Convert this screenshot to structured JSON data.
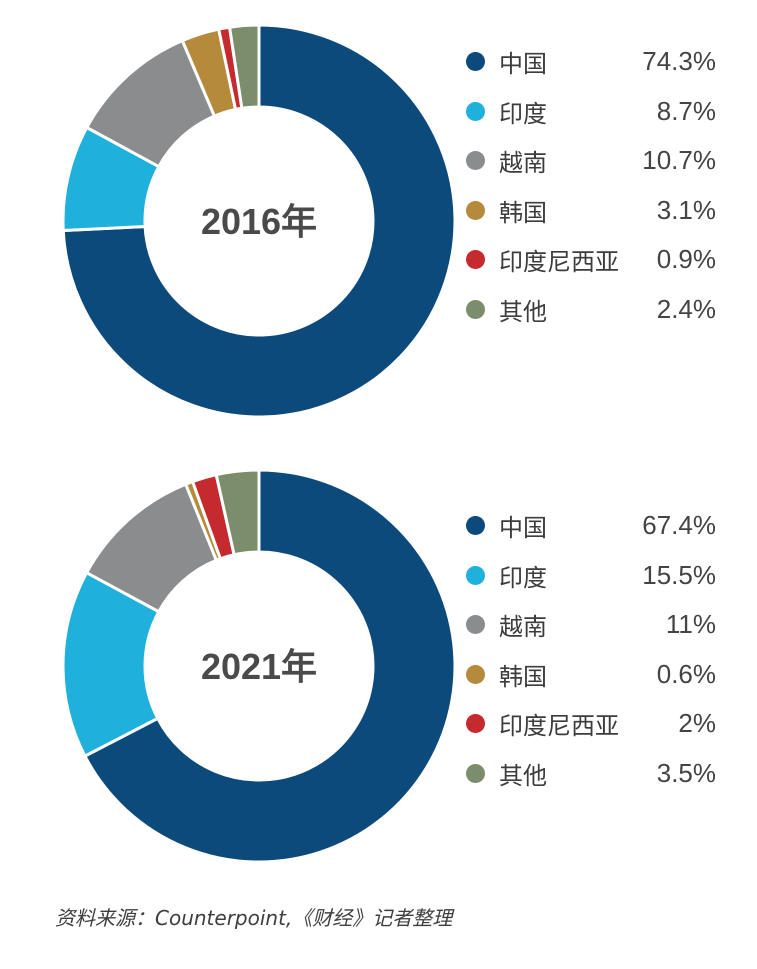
{
  "chart_data": [
    {
      "type": "pie",
      "center_label": "2016年",
      "categories": [
        "中国",
        "印度",
        "越南",
        "韩国",
        "印度尼西亚",
        "其他"
      ],
      "values": [
        74.3,
        8.7,
        10.7,
        3.1,
        0.9,
        2.4
      ],
      "value_labels": [
        "74.3%",
        "8.7%",
        "10.7%",
        "3.1%",
        "0.9%",
        "2.4%"
      ],
      "colors": [
        "#0d4a7c",
        "#1fb0dc",
        "#8a8c8e",
        "#b58a3a",
        "#c42a2e",
        "#7b8d6a"
      ],
      "legend_position": "right",
      "donut": true
    },
    {
      "type": "pie",
      "center_label": "2021年",
      "categories": [
        "中国",
        "印度",
        "越南",
        "韩国",
        "印度尼西亚",
        "其他"
      ],
      "values": [
        67.4,
        15.5,
        11,
        0.6,
        2,
        3.5
      ],
      "value_labels": [
        "67.4%",
        "15.5%",
        "11%",
        "0.6%",
        "2%",
        "3.5%"
      ],
      "colors": [
        "#0d4a7c",
        "#1fb0dc",
        "#8a8c8e",
        "#b58a3a",
        "#c42a2e",
        "#7b8d6a"
      ],
      "legend_position": "right",
      "donut": true
    }
  ],
  "source_text": "资料来源：Counterpoint,《财经》记者整理"
}
